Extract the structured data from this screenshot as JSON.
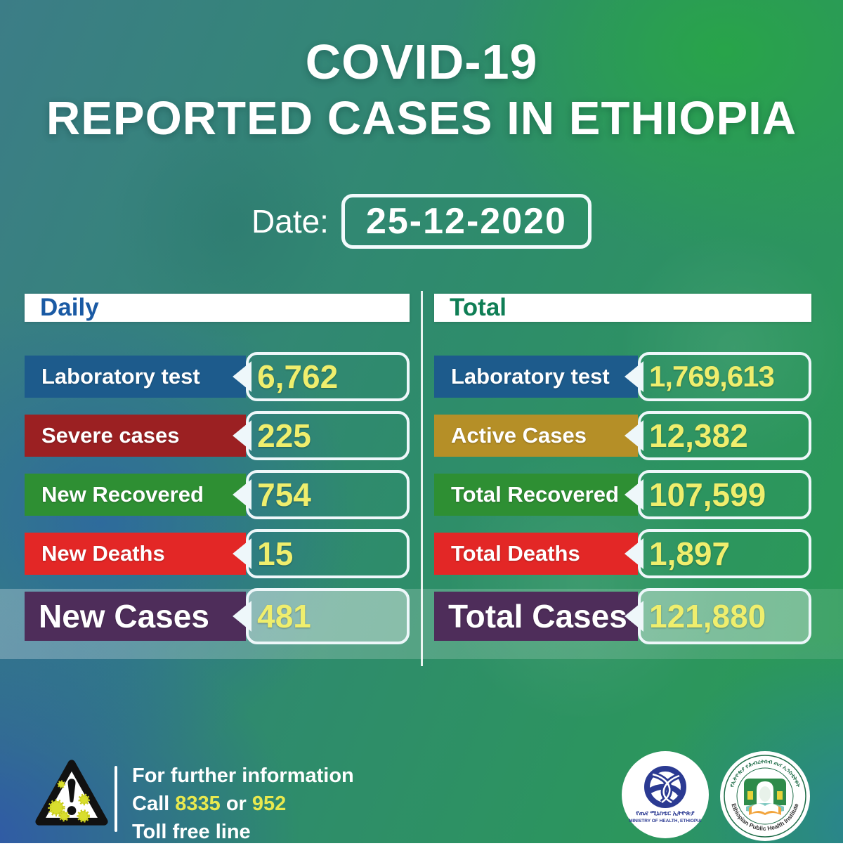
{
  "title": {
    "line1": "COVID-19",
    "line2": "REPORTED CASES IN ETHIOPIA"
  },
  "date": {
    "label": "Date:",
    "value": "25-12-2020"
  },
  "accent_value_color": "#efee6d",
  "columns": [
    {
      "header": "Daily",
      "header_color": "#1a5aa4",
      "rows": [
        {
          "label": "Laboratory test",
          "value": "6,762",
          "color": "#1d5b8c",
          "emphasis": false
        },
        {
          "label": "Severe cases",
          "value": "225",
          "color": "#9b2022",
          "emphasis": false
        },
        {
          "label": "New Recovered",
          "value": "754",
          "color": "#2e8f33",
          "emphasis": false
        },
        {
          "label": "New Deaths",
          "value": "15",
          "color": "#e32726",
          "emphasis": false
        },
        {
          "label": "New Cases",
          "value": "481",
          "color": "#4e2d5a",
          "emphasis": true
        }
      ]
    },
    {
      "header": "Total",
      "header_color": "#0f7e55",
      "rows": [
        {
          "label": "Laboratory test",
          "value": "1,769,613",
          "color": "#1d5b8c",
          "emphasis": false
        },
        {
          "label": "Active Cases",
          "value": "12,382",
          "color": "#b58f27",
          "emphasis": false
        },
        {
          "label": "Total Recovered",
          "value": "107,599",
          "color": "#2e8f33",
          "emphasis": false
        },
        {
          "label": "Total Deaths",
          "value": "1,897",
          "color": "#e32726",
          "emphasis": false
        },
        {
          "label": "Total Cases",
          "value": "121,880",
          "color": "#4e2d5a",
          "emphasis": true
        }
      ]
    }
  ],
  "footer": {
    "info": {
      "line1": "For further information",
      "call_word": "Call",
      "phone1": "8335",
      "or_word": "or",
      "phone2": "952",
      "line3": "Toll free line"
    },
    "phone_color": "#e9e94e",
    "logos": {
      "moh": {
        "amharic": "የጤና ሚኒስቴር ኢትዮጵያ",
        "english": "MINISTRY OF HEALTH, ETHIOPIA"
      },
      "ephi": {
        "top": "የኢትዮጵያ የሕብረተሰብ ጤና ኢንስቲትዩት",
        "bottom": "Ethiopian Public Health Institute"
      }
    }
  },
  "chart_data": {
    "type": "table",
    "title": "COVID-19 Reported Cases in Ethiopia",
    "date": "25-12-2020",
    "categories": [
      "Laboratory test",
      "Severe cases / Active Cases",
      "Recovered",
      "Deaths",
      "Cases"
    ],
    "series": [
      {
        "name": "Daily",
        "rows": [
          [
            "Laboratory test",
            6762
          ],
          [
            "Severe cases",
            225
          ],
          [
            "New Recovered",
            754
          ],
          [
            "New Deaths",
            15
          ],
          [
            "New Cases",
            481
          ]
        ]
      },
      {
        "name": "Total",
        "rows": [
          [
            "Laboratory test",
            1769613
          ],
          [
            "Active Cases",
            12382
          ],
          [
            "Total Recovered",
            107599
          ],
          [
            "Total Deaths",
            1897
          ],
          [
            "Total Cases",
            121880
          ]
        ]
      }
    ],
    "legend_position": "none",
    "grid": false
  }
}
